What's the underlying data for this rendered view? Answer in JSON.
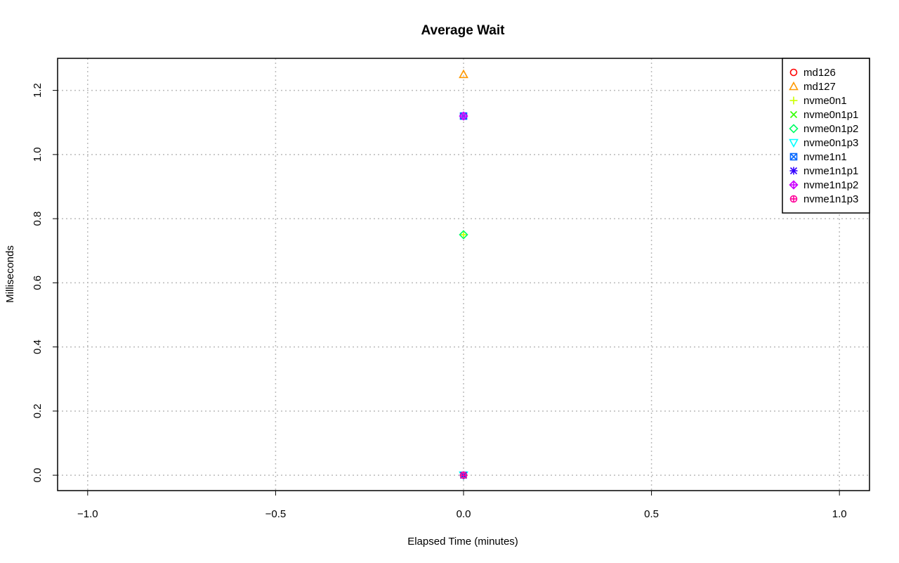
{
  "chart_data": {
    "type": "scatter",
    "title": "Average Wait",
    "xlabel": "Elapsed Time (minutes)",
    "ylabel": "Milliseconds",
    "xlim": [
      -1.08,
      1.08
    ],
    "ylim": [
      -0.048,
      1.3
    ],
    "x_ticks": [
      -1.0,
      -0.5,
      0.0,
      0.5,
      1.0
    ],
    "x_tick_labels": [
      "−1.0",
      "−0.5",
      "0.0",
      "0.5",
      "1.0"
    ],
    "y_ticks": [
      0.0,
      0.2,
      0.4,
      0.6,
      0.8,
      1.0,
      1.2
    ],
    "y_tick_labels": [
      "0.0",
      "0.2",
      "0.4",
      "0.6",
      "0.8",
      "1.0",
      "1.2"
    ],
    "grid": true,
    "legend_position": "top-right",
    "series": [
      {
        "name": "md126",
        "color": "#ff0000",
        "marker": "circle",
        "x": [
          0
        ],
        "y": [
          0.0
        ]
      },
      {
        "name": "md127",
        "color": "#ff9900",
        "marker": "triangle-up",
        "x": [
          0
        ],
        "y": [
          1.25
        ]
      },
      {
        "name": "nvme0n1",
        "color": "#ccff00",
        "marker": "plus",
        "x": [
          0
        ],
        "y": [
          0.75
        ]
      },
      {
        "name": "nvme0n1p1",
        "color": "#33ff00",
        "marker": "cross",
        "x": [
          0
        ],
        "y": [
          0.0
        ]
      },
      {
        "name": "nvme0n1p2",
        "color": "#00ff66",
        "marker": "diamond",
        "x": [
          0
        ],
        "y": [
          0.75
        ]
      },
      {
        "name": "nvme0n1p3",
        "color": "#00ffff",
        "marker": "triangle-down",
        "x": [
          0
        ],
        "y": [
          0.0
        ]
      },
      {
        "name": "nvme1n1",
        "color": "#0066ff",
        "marker": "square-cross",
        "x": [
          0
        ],
        "y": [
          1.12
        ]
      },
      {
        "name": "nvme1n1p1",
        "color": "#3300ff",
        "marker": "asterisk",
        "x": [
          0
        ],
        "y": [
          0.0
        ]
      },
      {
        "name": "nvme1n1p2",
        "color": "#cc00ff",
        "marker": "diamond-plus",
        "x": [
          0
        ],
        "y": [
          1.12
        ]
      },
      {
        "name": "nvme1n1p3",
        "color": "#ff0099",
        "marker": "circle-plus",
        "x": [
          0
        ],
        "y": [
          0.0
        ]
      }
    ]
  }
}
